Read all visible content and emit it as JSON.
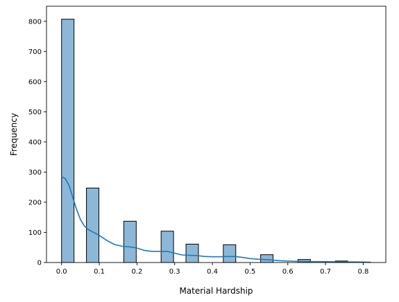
{
  "chart_data": {
    "type": "bar",
    "title": "",
    "xlabel": "Material Hardship",
    "ylabel": "Frequency",
    "xlim": [
      -0.04,
      0.86
    ],
    "ylim": [
      0,
      850
    ],
    "xticks": [
      0.0,
      0.1,
      0.2,
      0.3,
      0.4,
      0.5,
      0.6,
      0.7,
      0.8
    ],
    "xtick_labels": [
      "0.0",
      "0.1",
      "0.2",
      "0.3",
      "0.4",
      "0.5",
      "0.6",
      "0.7",
      "0.8"
    ],
    "yticks": [
      0,
      100,
      200,
      300,
      400,
      500,
      600,
      700,
      800
    ],
    "ytick_labels": [
      "0",
      "100",
      "200",
      "300",
      "400",
      "500",
      "600",
      "700",
      "800"
    ],
    "bin_width": 0.033,
    "bins": [
      {
        "x0": 0.0,
        "count": 807
      },
      {
        "x0": 0.033,
        "count": 0
      },
      {
        "x0": 0.066,
        "count": 247
      },
      {
        "x0": 0.099,
        "count": 0
      },
      {
        "x0": 0.132,
        "count": 0
      },
      {
        "x0": 0.165,
        "count": 137
      },
      {
        "x0": 0.198,
        "count": 0
      },
      {
        "x0": 0.231,
        "count": 0
      },
      {
        "x0": 0.264,
        "count": 104
      },
      {
        "x0": 0.297,
        "count": 0
      },
      {
        "x0": 0.33,
        "count": 61
      },
      {
        "x0": 0.363,
        "count": 0
      },
      {
        "x0": 0.396,
        "count": 0
      },
      {
        "x0": 0.429,
        "count": 59
      },
      {
        "x0": 0.462,
        "count": 0
      },
      {
        "x0": 0.495,
        "count": 0
      },
      {
        "x0": 0.528,
        "count": 26
      },
      {
        "x0": 0.561,
        "count": 0
      },
      {
        "x0": 0.594,
        "count": 0
      },
      {
        "x0": 0.627,
        "count": 10
      },
      {
        "x0": 0.66,
        "count": 0
      },
      {
        "x0": 0.693,
        "count": 0
      },
      {
        "x0": 0.726,
        "count": 5
      }
    ],
    "kde": {
      "x": [
        0.0,
        0.01,
        0.02,
        0.03,
        0.04,
        0.05,
        0.06,
        0.07,
        0.08,
        0.09,
        0.1,
        0.12,
        0.14,
        0.16,
        0.18,
        0.2,
        0.22,
        0.24,
        0.26,
        0.28,
        0.3,
        0.32,
        0.34,
        0.36,
        0.38,
        0.4,
        0.42,
        0.44,
        0.46,
        0.48,
        0.5,
        0.52,
        0.55,
        0.58,
        0.62,
        0.66,
        0.7,
        0.74,
        0.78,
        0.82
      ],
      "y": [
        285,
        278,
        255,
        215,
        175,
        143,
        122,
        110,
        103,
        97,
        90,
        73,
        60,
        54,
        52,
        48,
        40,
        37,
        37,
        37,
        31,
        25,
        24,
        23,
        20,
        19,
        19,
        20,
        20,
        17,
        13,
        11,
        9,
        6,
        4,
        3,
        3,
        2,
        2,
        1
      ]
    },
    "colors": {
      "bar_fill": "#8db7d7",
      "bar_edge": "#000000",
      "kde_line": "#1f77b4"
    },
    "grid": false,
    "legend": "none"
  }
}
